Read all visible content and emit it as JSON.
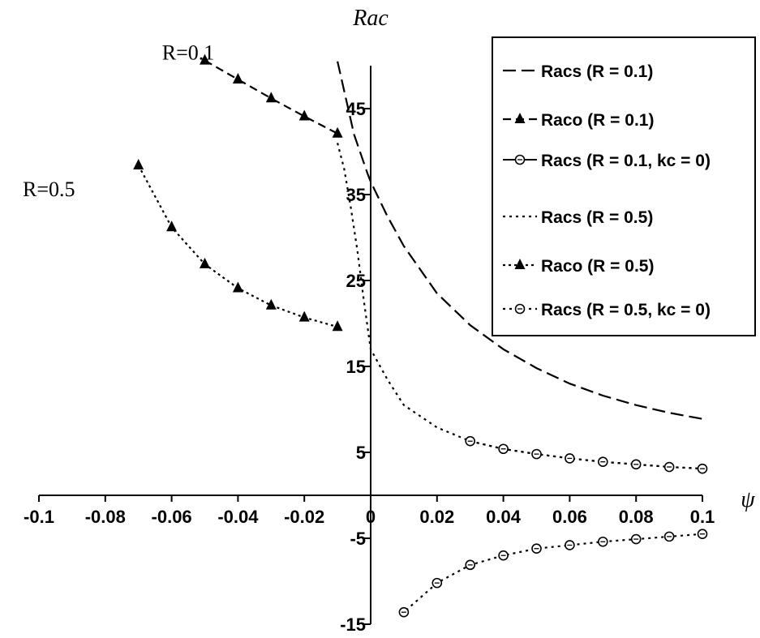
{
  "chart_data": {
    "type": "line",
    "xlabel": "ψ",
    "ylabel": "Rac",
    "xlim": [
      -0.1,
      0.1
    ],
    "ylim": [
      -15,
      50
    ],
    "xticks": [
      -0.1,
      -0.08,
      -0.06,
      -0.04,
      -0.02,
      0,
      0.02,
      0.04,
      0.06,
      0.08,
      0.1
    ],
    "xtick_labels": [
      "-0.1",
      "-0.08",
      "-0.06",
      "-0.04",
      "-0.02",
      "0",
      "0.02",
      "0.04",
      "0.06",
      "0.08",
      "0.1"
    ],
    "yticks": [
      -15,
      -5,
      5,
      15,
      25,
      35,
      45
    ],
    "ytick_labels": [
      "-15",
      "-5",
      "5",
      "15",
      "25",
      "35",
      "45"
    ],
    "grid": false,
    "legend_position": "top-right",
    "annotations": [
      {
        "text": "R=0.1",
        "x": -0.055,
        "y": 50.7
      },
      {
        "text": "R=0.5",
        "x": -0.097,
        "y": 34.8
      }
    ],
    "series": [
      {
        "name": "Racs (R = 0.1)",
        "style": "long-dash",
        "marker": "none",
        "x": [
          -0.01,
          -0.005,
          -0.001,
          0,
          0.005,
          0.01,
          0.02,
          0.03,
          0.04,
          0.05,
          0.06,
          0.07,
          0.08,
          0.09,
          0.1
        ],
        "y": [
          50.5,
          42.0,
          37.5,
          36.5,
          32.5,
          29.0,
          23.5,
          19.8,
          17.0,
          14.8,
          13.0,
          11.6,
          10.5,
          9.6,
          8.9
        ]
      },
      {
        "name": "Raco (R = 0.1)",
        "style": "dash",
        "marker": "triangle",
        "x": [
          -0.05,
          -0.04,
          -0.03,
          -0.02,
          -0.01
        ],
        "y": [
          50.6,
          48.4,
          46.2,
          44.1,
          42.1
        ]
      },
      {
        "name": "Racs (R = 0.1, kc = 0)",
        "style": "solid",
        "marker": "circle",
        "x": [],
        "y": []
      },
      {
        "name": "Racs (R = 0.5)",
        "style": "dot",
        "marker": "none",
        "x": [
          -0.01,
          -0.008,
          -0.006,
          -0.004,
          -0.002,
          0,
          0.005,
          0.01,
          0.02,
          0.03,
          0.04,
          0.05,
          0.06,
          0.07,
          0.08,
          0.09,
          0.1
        ],
        "y": [
          41.0,
          38.0,
          33.5,
          28.5,
          22.5,
          17.0,
          13.5,
          10.5,
          7.9,
          6.3,
          5.4,
          4.8,
          4.3,
          3.9,
          3.6,
          3.3,
          3.1
        ]
      },
      {
        "name": "Raco (R = 0.5)",
        "style": "dot-dash",
        "marker": "triangle",
        "x": [
          -0.07,
          -0.06,
          -0.05,
          -0.04,
          -0.03,
          -0.02,
          -0.01
        ],
        "y": [
          38.4,
          31.2,
          26.9,
          24.1,
          22.1,
          20.7,
          19.6
        ]
      },
      {
        "name": "Racs (R = 0.5, kc = 0)",
        "style": "dot",
        "marker": "circle",
        "x": [
          0.03,
          0.04,
          0.05,
          0.06,
          0.07,
          0.08,
          0.09,
          0.1,
          0.1,
          0.09,
          0.08,
          0.07,
          0.06,
          0.05,
          0.04,
          0.03,
          0.02,
          0.01
        ],
        "y": [
          6.3,
          5.4,
          4.8,
          4.3,
          3.9,
          3.6,
          3.3,
          3.1,
          -4.5,
          -4.8,
          -5.1,
          -5.4,
          -5.8,
          -6.2,
          -7.0,
          -8.1,
          -10.2,
          -13.6
        ]
      }
    ]
  }
}
